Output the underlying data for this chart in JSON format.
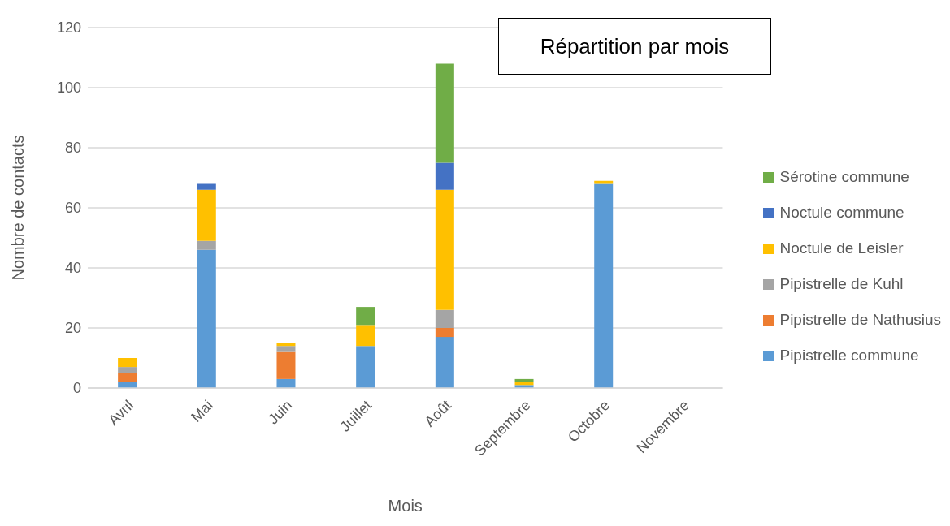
{
  "chart_data": {
    "type": "bar",
    "title": "Répartition par mois",
    "xlabel": "Mois",
    "ylabel": "Nombre de contacts",
    "categories": [
      "Avril",
      "Mai",
      "Juin",
      "Juillet",
      "Août",
      "Septembre",
      "Octobre",
      "Novembre"
    ],
    "stacked": true,
    "series": [
      {
        "name": "Pipistrelle commune",
        "color": "#5b9bd5",
        "values": [
          2,
          46,
          3,
          14,
          17,
          1,
          68,
          0
        ]
      },
      {
        "name": "Pipistrelle de Nathusius",
        "color": "#ed7d31",
        "values": [
          3,
          0,
          9,
          0,
          3,
          0,
          0,
          0
        ]
      },
      {
        "name": "Pipistrelle de Kuhl",
        "color": "#a5a5a5",
        "values": [
          2,
          3,
          2,
          0,
          6,
          0,
          0,
          0
        ]
      },
      {
        "name": "Noctule de Leisler",
        "color": "#ffc000",
        "values": [
          3,
          17,
          1,
          7,
          40,
          1,
          1,
          0
        ]
      },
      {
        "name": "Noctule commune",
        "color": "#4472c4",
        "values": [
          0,
          2,
          0,
          0,
          9,
          0,
          0,
          0
        ]
      },
      {
        "name": "Sérotine commune",
        "color": "#70ad47",
        "values": [
          0,
          0,
          0,
          6,
          33,
          1,
          0,
          0
        ]
      }
    ],
    "ylim": [
      0,
      120
    ],
    "yticks": [
      0,
      20,
      40,
      60,
      80,
      100,
      120
    ],
    "grid": "y",
    "legend": "right"
  }
}
